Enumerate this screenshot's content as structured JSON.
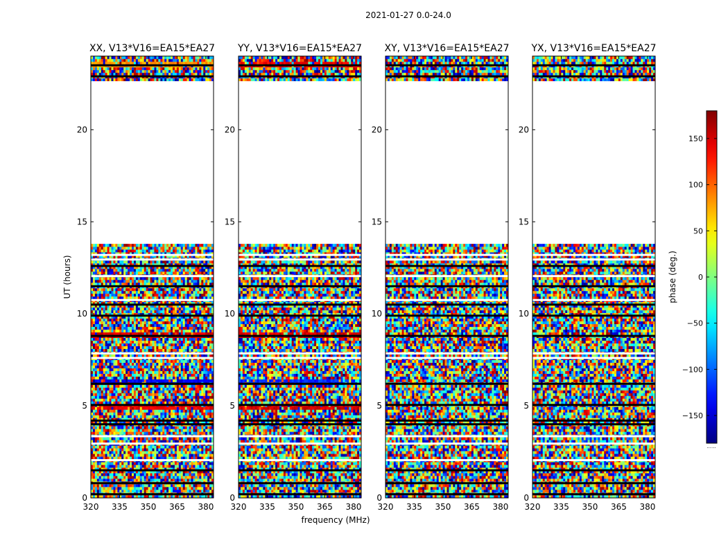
{
  "figure": {
    "suptitle": "2021-01-27 0.0-24.0",
    "xlabel": "frequency (MHz)",
    "ylabel": "UT (hours)"
  },
  "chart_data": {
    "type": "heatmap",
    "title": "2021-01-27 0.0-24.0",
    "xlabel": "frequency (MHz)",
    "ylabel": "UT (hours)",
    "xlim": [
      320,
      384
    ],
    "ylim": [
      0,
      24
    ],
    "xticks": [
      320,
      335,
      350,
      365,
      380
    ],
    "yticks": [
      0,
      5,
      10,
      15,
      20
    ],
    "panels": [
      {
        "title": "XX, V13*V16=EA15*EA27",
        "pol": "XX"
      },
      {
        "title": "YY, V13*V16=EA15*EA27",
        "pol": "YY"
      },
      {
        "title": "XY, V13*V16=EA15*EA27",
        "pol": "XY"
      },
      {
        "title": "YX, V13*V16=EA15*EA27",
        "pol": "YX"
      }
    ],
    "colorbar": {
      "label": "phase (deg.)",
      "colormap": "jet",
      "range": [
        -180,
        180
      ],
      "ticks": [
        150,
        100,
        50,
        0,
        -50,
        -100,
        -150
      ],
      "tick_labels": [
        "150",
        "100",
        "50",
        "0",
        "−50",
        "−100",
        "−150"
      ],
      "extra_label": "......"
    },
    "data_coverage_hours": [
      [
        0,
        13.85
      ],
      [
        22.7,
        24
      ]
    ],
    "blank_interval_hours": [
      13.85,
      22.7
    ],
    "flagged_black_rows_hours": [
      0.2,
      0.8,
      1.5,
      4.0,
      4.2,
      5.05,
      6.2,
      8.8,
      9.9,
      10.5,
      11.5,
      12.6,
      22.9,
      23.5
    ],
    "flagged_white_gaps_hours": [
      2.05,
      2.95,
      3.35,
      7.6,
      7.85,
      10.75,
      12.05,
      12.95,
      13.2
    ],
    "coherent_bands": [
      {
        "pol": "XX",
        "hour": 6.3,
        "phase_deg": -140
      },
      {
        "pol": "XX",
        "hour": 5.0,
        "phase_deg": 140
      },
      {
        "pol": "XX",
        "hour": 8.85,
        "phase_deg": 150
      },
      {
        "pol": "XX",
        "hour": 23.6,
        "phase_deg": 80
      },
      {
        "pol": "YY",
        "hour": 6.3,
        "phase_deg": -120
      },
      {
        "pol": "YY",
        "hour": 5.0,
        "phase_deg": 150
      },
      {
        "pol": "YY",
        "hour": 8.85,
        "phase_deg": 150
      },
      {
        "pol": "YY",
        "hour": 23.6,
        "phase_deg": 140
      }
    ]
  }
}
